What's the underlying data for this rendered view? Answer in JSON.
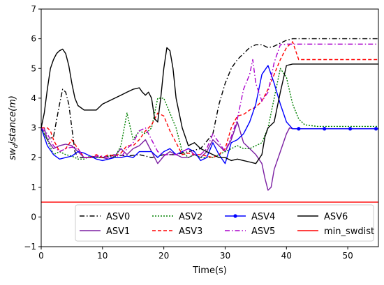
{
  "chart_data": {
    "type": "line",
    "title": "",
    "xlabel": "Time(s)",
    "ylabel_main": "sw",
    "ylabel_sub": "d",
    "ylabel_rest": "istance(m)",
    "xlim": [
      0,
      55
    ],
    "ylim": [
      -1,
      7
    ],
    "xticks": [
      0,
      10,
      20,
      30,
      40,
      50
    ],
    "yticks": [
      -1,
      0,
      1,
      2,
      3,
      4,
      5,
      6,
      7
    ],
    "grid": false,
    "legend_position": "bottom-right",
    "series": [
      {
        "name": "ASV0",
        "color": "#000000",
        "dash": "7 3 1.5 3",
        "marker": "none",
        "x": [
          0,
          1,
          2,
          3,
          3.5,
          4,
          4.5,
          5,
          5.5,
          6,
          7,
          8,
          9,
          10,
          12,
          14,
          16,
          18,
          20,
          22,
          24,
          26,
          28,
          29,
          30,
          31,
          32,
          33,
          34,
          35,
          36,
          37,
          38,
          39,
          40,
          41,
          45,
          50,
          55
        ],
        "y": [
          3.0,
          2.6,
          2.7,
          3.8,
          4.3,
          4.2,
          3.8,
          3.0,
          2.2,
          2.0,
          2.0,
          2.0,
          2.05,
          2.0,
          2.1,
          2.05,
          2.1,
          2.0,
          2.1,
          2.1,
          2.2,
          2.3,
          2.8,
          3.8,
          4.5,
          5.0,
          5.3,
          5.5,
          5.7,
          5.8,
          5.8,
          5.7,
          5.75,
          5.85,
          5.95,
          6.0,
          6.0,
          6.0,
          6.0
        ]
      },
      {
        "name": "ASV1",
        "color": "#7b1fa2",
        "dash": "",
        "marker": "none",
        "x": [
          0,
          0.5,
          1,
          2,
          3,
          4,
          5,
          6,
          7,
          8,
          9,
          10,
          11,
          12,
          13,
          14,
          15,
          16,
          17,
          18,
          19,
          20,
          21,
          22,
          23,
          24,
          25,
          26,
          27,
          28,
          29,
          30,
          31,
          32,
          33,
          34,
          35,
          36,
          36.5,
          37,
          37.5,
          38,
          39,
          40,
          40.5,
          41,
          42,
          45,
          50,
          55
        ],
        "y": [
          3.0,
          3.0,
          2.6,
          2.3,
          2.4,
          2.45,
          2.4,
          2.2,
          2.0,
          2.0,
          2.0,
          2.0,
          1.95,
          2.05,
          2.3,
          2.1,
          2.3,
          2.4,
          2.6,
          2.2,
          1.8,
          2.05,
          2.2,
          2.1,
          2.0,
          2.0,
          2.1,
          2.0,
          2.2,
          2.6,
          2.4,
          2.2,
          2.6,
          3.2,
          2.5,
          2.3,
          2.1,
          1.8,
          1.3,
          0.9,
          1.0,
          1.6,
          2.2,
          2.8,
          3.0,
          2.97,
          2.97,
          2.97,
          2.97,
          2.97
        ]
      },
      {
        "name": "ASV2",
        "color": "#008000",
        "dash": "2 2",
        "marker": "none",
        "x": [
          0,
          1,
          2,
          3,
          4,
          5,
          6,
          7,
          8,
          9,
          10,
          11,
          12,
          13,
          14,
          15,
          16,
          17,
          18,
          19,
          20,
          21,
          22,
          23,
          24,
          25,
          26,
          27,
          28,
          29,
          30,
          31,
          32,
          33,
          34,
          35,
          36,
          37,
          38,
          39,
          40,
          41,
          42,
          43,
          45,
          50,
          55
        ],
        "y": [
          3.0,
          2.6,
          2.1,
          2.2,
          2.1,
          2.05,
          1.95,
          1.95,
          2.05,
          2.0,
          2.0,
          2.05,
          2.0,
          2.4,
          3.5,
          2.6,
          2.9,
          2.8,
          3.0,
          4.0,
          4.0,
          3.5,
          3.0,
          2.2,
          2.0,
          2.1,
          2.0,
          2.0,
          2.0,
          2.1,
          2.2,
          2.3,
          2.4,
          2.3,
          2.3,
          2.4,
          2.5,
          3.0,
          4.0,
          5.0,
          4.7,
          3.8,
          3.3,
          3.1,
          3.05,
          3.05,
          3.05
        ]
      },
      {
        "name": "ASV3",
        "color": "#ff0000",
        "dash": "5 3",
        "marker": "none",
        "x": [
          0,
          1,
          1.5,
          2,
          3,
          4,
          5,
          6,
          7,
          8,
          9,
          10,
          11,
          12,
          13,
          14,
          15,
          16,
          17,
          18,
          19,
          20,
          21,
          22,
          23,
          24,
          25,
          26,
          27,
          28,
          29,
          30,
          31,
          32,
          33,
          34,
          35,
          36,
          37,
          38,
          39,
          40,
          41,
          42,
          45,
          50,
          55
        ],
        "y": [
          3.0,
          3.0,
          2.9,
          2.6,
          2.2,
          2.3,
          2.6,
          2.3,
          2.0,
          2.0,
          2.1,
          2.0,
          2.1,
          2.05,
          2.15,
          2.4,
          2.4,
          2.6,
          2.9,
          3.1,
          3.5,
          3.4,
          2.9,
          2.5,
          2.1,
          2.15,
          2.1,
          2.1,
          2.05,
          2.0,
          2.1,
          2.3,
          3.0,
          3.4,
          3.45,
          3.6,
          3.7,
          3.9,
          4.3,
          4.8,
          5.3,
          5.7,
          5.9,
          5.3,
          5.3,
          5.3,
          5.3
        ]
      },
      {
        "name": "ASV4",
        "color": "#0000ff",
        "dash": "",
        "marker": "dot",
        "x": [
          0,
          1,
          2,
          3,
          4,
          5,
          6,
          7,
          8,
          9,
          10,
          11,
          12,
          13,
          14,
          15,
          16,
          17,
          18,
          19,
          20,
          21,
          22,
          23,
          24,
          25,
          26,
          27,
          28,
          29,
          30,
          31,
          32,
          33,
          34,
          35,
          36,
          37,
          37.5,
          38,
          39,
          40,
          41,
          42,
          45,
          50,
          55
        ],
        "y": [
          3.0,
          2.4,
          2.1,
          1.95,
          2.0,
          2.05,
          2.2,
          2.15,
          2.05,
          1.95,
          1.9,
          1.95,
          2.0,
          2.0,
          2.05,
          2.0,
          2.2,
          2.2,
          2.2,
          2.0,
          2.2,
          2.3,
          2.1,
          2.2,
          2.3,
          2.2,
          1.9,
          2.0,
          2.5,
          2.1,
          1.8,
          2.5,
          2.6,
          2.8,
          3.2,
          3.8,
          4.8,
          5.1,
          4.8,
          4.5,
          3.8,
          3.2,
          2.97,
          2.97,
          2.97,
          2.97,
          2.97
        ],
        "markers_x": [
          42,
          46.2,
          50.4,
          54.6
        ],
        "markers_y": [
          2.97,
          2.97,
          2.97,
          2.97
        ]
      },
      {
        "name": "ASV5",
        "color": "#aa00cc",
        "dash": "7 3 1.5 3",
        "marker": "none",
        "x": [
          0,
          1,
          2,
          3,
          4,
          5,
          6,
          7,
          8,
          9,
          10,
          11,
          12,
          13,
          14,
          15,
          16,
          17,
          18,
          19,
          20,
          21,
          22,
          23,
          24,
          25,
          26,
          27,
          28,
          29,
          30,
          31,
          32,
          33,
          34,
          34.5,
          35,
          36,
          37,
          38,
          39,
          40,
          41,
          42,
          45,
          50,
          55
        ],
        "y": [
          3.0,
          2.8,
          2.4,
          2.2,
          2.3,
          2.35,
          2.3,
          2.0,
          2.0,
          2.05,
          2.05,
          2.0,
          2.1,
          2.0,
          2.3,
          2.5,
          2.9,
          3.0,
          2.6,
          2.2,
          2.1,
          2.1,
          2.1,
          2.2,
          2.3,
          2.1,
          2.1,
          2.3,
          2.8,
          2.5,
          2.2,
          2.7,
          3.3,
          4.3,
          4.8,
          5.3,
          4.5,
          3.9,
          4.2,
          5.2,
          5.8,
          5.82,
          5.82,
          5.82,
          5.82,
          5.82,
          5.82
        ]
      },
      {
        "name": "ASV6",
        "color": "#000000",
        "dash": "",
        "marker": "none",
        "x": [
          0,
          0.5,
          1,
          1.5,
          2,
          2.5,
          3,
          3.5,
          4,
          4.5,
          5,
          5.5,
          6,
          7,
          8,
          9,
          10,
          11,
          12,
          13,
          14,
          15,
          16,
          16.5,
          17,
          17.5,
          18,
          18.5,
          19,
          19.5,
          20,
          20.5,
          21,
          21.5,
          22,
          23,
          24,
          25,
          26,
          27,
          28,
          29,
          30,
          31,
          32,
          33,
          34,
          35,
          36,
          36.5,
          37,
          38,
          39,
          40,
          41,
          45,
          50,
          55
        ],
        "y": [
          3.0,
          3.5,
          4.3,
          5.0,
          5.3,
          5.5,
          5.6,
          5.65,
          5.5,
          5.1,
          4.5,
          4.0,
          3.75,
          3.6,
          3.6,
          3.6,
          3.8,
          3.9,
          4.0,
          4.1,
          4.2,
          4.3,
          4.35,
          4.2,
          4.1,
          4.2,
          4.0,
          3.3,
          3.2,
          4.0,
          5.0,
          5.7,
          5.6,
          5.0,
          4.0,
          3.0,
          2.4,
          2.5,
          2.3,
          2.2,
          2.1,
          2.0,
          2.0,
          1.9,
          1.95,
          1.9,
          1.85,
          1.8,
          2.1,
          2.7,
          3.0,
          3.2,
          4.2,
          5.1,
          5.15,
          5.15,
          5.15,
          5.15
        ]
      },
      {
        "name": "min_swdist",
        "color": "#ff0000",
        "dash": "",
        "marker": "none",
        "x": [
          0,
          55
        ],
        "y": [
          0.5,
          0.5
        ]
      }
    ],
    "legend_entries": [
      "ASV0",
      "ASV1",
      "ASV2",
      "ASV3",
      "ASV4",
      "ASV5",
      "ASV6",
      "min_swdist"
    ]
  }
}
